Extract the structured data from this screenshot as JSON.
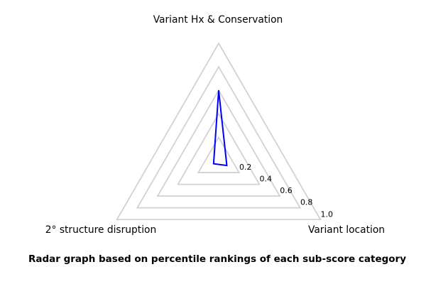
{
  "chart_data": {
    "type": "radar",
    "categories": [
      "Variant Hx & Conservation",
      "Variant location",
      "2° structure disruption"
    ],
    "series": [
      {
        "name": "percentile ranking",
        "values": [
          0.6,
          0.08,
          0.05
        ]
      }
    ],
    "angles_deg": [
      90,
      -30,
      210
    ],
    "rticks": [
      0.2,
      0.4,
      0.6,
      0.8,
      1.0
    ],
    "rtick_labels": [
      "0.2",
      "0.4",
      "0.6",
      "0.8",
      "1.0"
    ],
    "rlim": [
      0,
      1
    ],
    "grid": true,
    "legend": "none",
    "caption": "Radar graph based on percentile rankings of each sub-score category",
    "colors": {
      "series": "#0000ff",
      "grid": "#d2d2d2",
      "text": "#000000",
      "background": "#ffffff"
    }
  }
}
